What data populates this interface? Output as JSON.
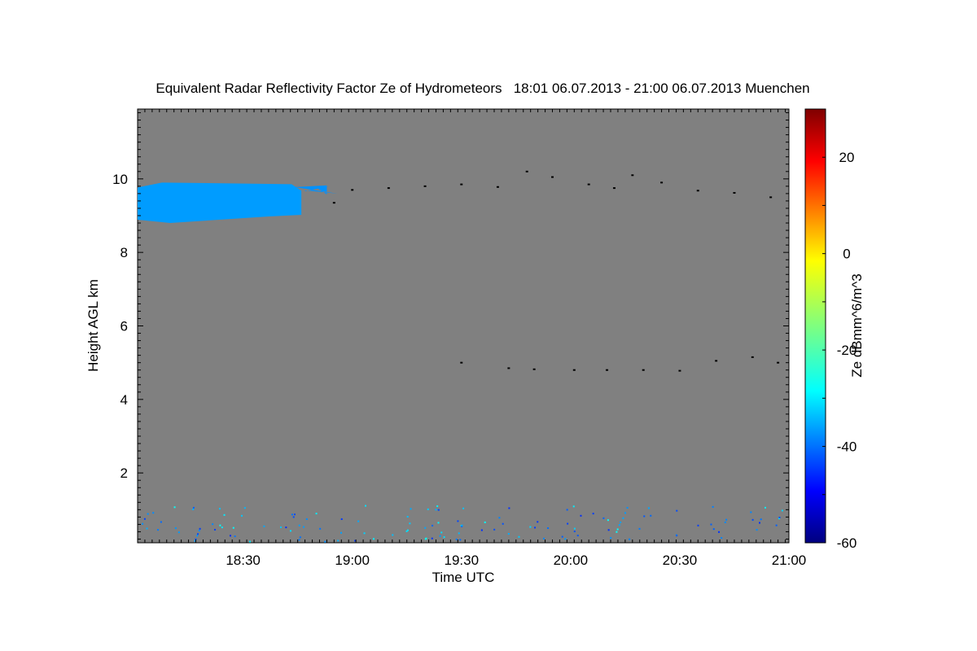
{
  "chart_data": {
    "type": "heatmap",
    "title": "Equivalent Radar Reflectivity Factor Ze of Hydrometeors   18:01 06.07.2013 - 21:00 06.07.2013 Muenchen",
    "xlabel": "Time UTC",
    "ylabel": "Height AGL km",
    "xlim": [
      "18:01",
      "21:00"
    ],
    "ylim": [
      0.1,
      11.9
    ],
    "x_ticks": [
      "18:30",
      "19:00",
      "19:30",
      "20:00",
      "20:30",
      "21:00"
    ],
    "y_ticks": [
      2,
      4,
      6,
      8,
      10
    ],
    "background_color": "#808080",
    "colorbar": {
      "label": "Ze dBmm^6/m^3",
      "range": [
        -60,
        30
      ],
      "ticks": [
        -60,
        -40,
        -20,
        0,
        20
      ],
      "colormap": "jet"
    },
    "regions": [
      {
        "x_start": "18:01",
        "x_end": "18:46",
        "z_bottom": 8.8,
        "z_top": 9.9,
        "ze_dbz": -35
      },
      {
        "x_start": "18:47",
        "x_end": "18:53",
        "z_bottom": 9.6,
        "z_top": 9.8,
        "ze_dbz": -36
      }
    ],
    "black_points": [
      {
        "t": "18:55",
        "z": 9.35
      },
      {
        "t": "19:00",
        "z": 9.7
      },
      {
        "t": "19:10",
        "z": 9.75
      },
      {
        "t": "19:20",
        "z": 9.8
      },
      {
        "t": "19:30",
        "z": 9.85
      },
      {
        "t": "19:40",
        "z": 9.78
      },
      {
        "t": "19:48",
        "z": 10.2
      },
      {
        "t": "19:55",
        "z": 10.05
      },
      {
        "t": "20:05",
        "z": 9.85
      },
      {
        "t": "20:12",
        "z": 9.75
      },
      {
        "t": "20:17",
        "z": 10.1
      },
      {
        "t": "20:25",
        "z": 9.9
      },
      {
        "t": "20:35",
        "z": 9.68
      },
      {
        "t": "20:45",
        "z": 9.62
      },
      {
        "t": "20:55",
        "z": 9.5
      },
      {
        "t": "19:30",
        "z": 5.0
      },
      {
        "t": "19:43",
        "z": 4.85
      },
      {
        "t": "19:50",
        "z": 4.82
      },
      {
        "t": "20:01",
        "z": 4.8
      },
      {
        "t": "20:10",
        "z": 4.8
      },
      {
        "t": "20:20",
        "z": 4.8
      },
      {
        "t": "20:30",
        "z": 4.78
      },
      {
        "t": "20:40",
        "z": 5.05
      },
      {
        "t": "20:50",
        "z": 5.15
      },
      {
        "t": "20:57",
        "z": 5.0
      }
    ]
  }
}
